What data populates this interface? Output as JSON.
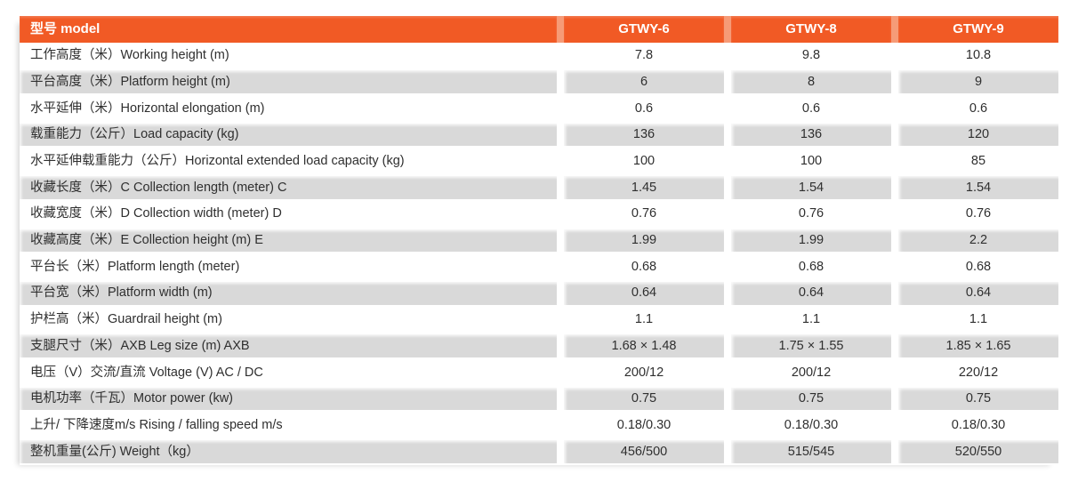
{
  "colors": {
    "accent_orange": "#f15a25",
    "header_gap_orange": "#f69b77",
    "row_alt_gray": "#d9d9d9",
    "header_text": "#ffffff",
    "body_text": "#2f2f2f"
  },
  "table": {
    "header": {
      "label": "型号 model",
      "columns": [
        "GTWY-6",
        "GTWY-8",
        "GTWY-9"
      ]
    },
    "rows": [
      {
        "label": "工作高度（米）Working height (m)",
        "values": [
          "7.8",
          "9.8",
          "10.8"
        ]
      },
      {
        "label": "平台高度（米）Platform height (m)",
        "values": [
          "6",
          "8",
          "9"
        ]
      },
      {
        "label": "水平延伸（米）Horizontal elongation (m)",
        "values": [
          "0.6",
          "0.6",
          "0.6"
        ]
      },
      {
        "label": "载重能力（公斤）Load capacity (kg)",
        "values": [
          "136",
          "136",
          "120"
        ]
      },
      {
        "label": "水平延伸载重能力（公斤）Horizontal extended load capacity (kg)",
        "values": [
          "100",
          "100",
          "85"
        ]
      },
      {
        "label": "收藏长度（米）C Collection length (meter) C",
        "values": [
          "1.45",
          "1.54",
          "1.54"
        ]
      },
      {
        "label": "收藏宽度（米）D Collection width (meter) D",
        "values": [
          "0.76",
          "0.76",
          "0.76"
        ]
      },
      {
        "label": "收藏高度（米）E Collection height (m) E",
        "values": [
          "1.99",
          "1.99",
          "2.2"
        ]
      },
      {
        "label": "平台长（米）Platform length (meter)",
        "values": [
          "0.68",
          "0.68",
          "0.68"
        ]
      },
      {
        "label": "平台宽（米）Platform width (m)",
        "values": [
          "0.64",
          "0.64",
          "0.64"
        ]
      },
      {
        "label": "护栏高（米）Guardrail height (m)",
        "values": [
          "1.1",
          "1.1",
          "1.1"
        ]
      },
      {
        "label": "支腿尺寸（米）AXB Leg size (m) AXB",
        "values": [
          "1.68 × 1.48",
          "1.75 × 1.55",
          "1.85 × 1.65"
        ]
      },
      {
        "label": "电压（V）交流/直流 Voltage (V) AC / DC",
        "values": [
          "200/12",
          "200/12",
          "220/12"
        ]
      },
      {
        "label": "电机功率（千瓦）Motor power (kw)",
        "values": [
          "0.75",
          "0.75",
          "0.75"
        ]
      },
      {
        "label": "上升/ 下降速度m/s Rising / falling speed m/s",
        "values": [
          "0.18/0.30",
          "0.18/0.30",
          "0.18/0.30"
        ]
      },
      {
        "label": "整机重量(公斤) Weight（kg）",
        "values": [
          "456/500",
          "515/545",
          "520/550"
        ]
      }
    ]
  }
}
